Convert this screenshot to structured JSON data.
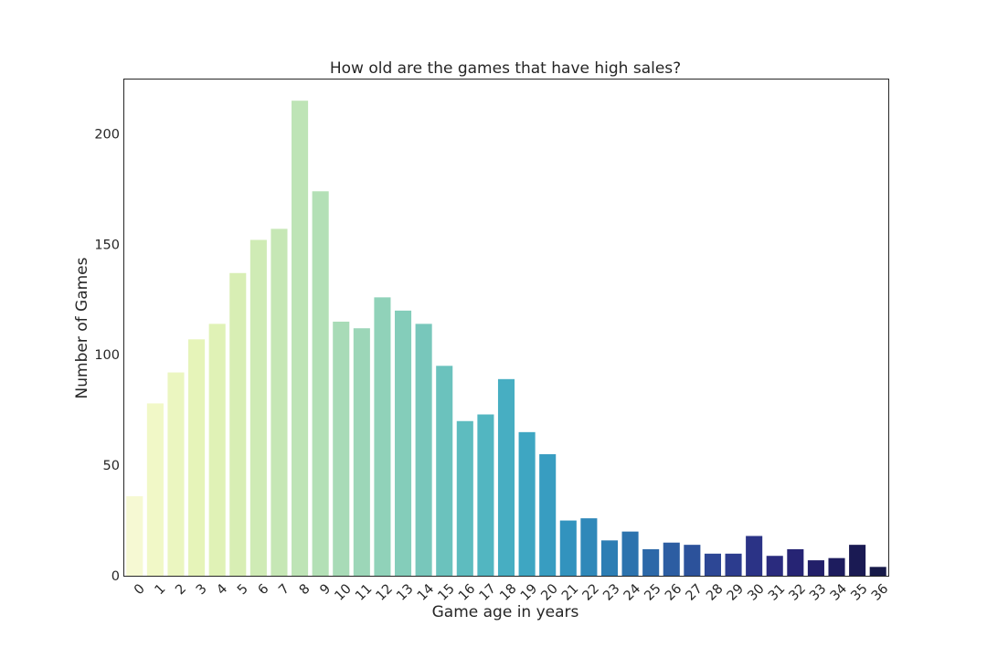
{
  "chart_data": {
    "type": "bar",
    "title": "How old are the games that have high sales?",
    "xlabel": "Game age in years",
    "ylabel": "Number of Games",
    "categories": [
      "0",
      "1",
      "2",
      "3",
      "4",
      "5",
      "6",
      "7",
      "8",
      "9",
      "10",
      "11",
      "12",
      "13",
      "14",
      "15",
      "16",
      "17",
      "18",
      "19",
      "20",
      "21",
      "22",
      "23",
      "24",
      "25",
      "26",
      "27",
      "28",
      "29",
      "30",
      "31",
      "32",
      "33",
      "34",
      "35",
      "36"
    ],
    "values": [
      36,
      78,
      92,
      107,
      114,
      137,
      152,
      157,
      215,
      174,
      115,
      112,
      126,
      120,
      114,
      95,
      70,
      73,
      89,
      65,
      55,
      25,
      26,
      16,
      20,
      12,
      15,
      14,
      10,
      10,
      18,
      9,
      12,
      7,
      8,
      14,
      4
    ],
    "ylim": [
      0,
      225
    ],
    "yticks": [
      0,
      50,
      100,
      150,
      200
    ],
    "grid": false,
    "palette": "YlGnBu",
    "colors": [
      "#f6f9d3",
      "#f1f8c7",
      "#ebf6c0",
      "#e6f4b9",
      "#e0f2b6",
      "#d8eeb4",
      "#cfebb5",
      "#c6e7b5",
      "#bee4b6",
      "#b3e0b6",
      "#a8dbb7",
      "#9cd6b8",
      "#90d2b9",
      "#84cdba",
      "#78c7bb",
      "#6bc2bd",
      "#5ebcbf",
      "#52b6c1",
      "#47aec2",
      "#3ea6c2",
      "#389dc1",
      "#3293be",
      "#2f88b9",
      "#2d7eb4",
      "#2c73ae",
      "#2c68a8",
      "#2c5da2",
      "#2c529b",
      "#2d4795",
      "#2c3c8e",
      "#2b3386",
      "#2a2b7e",
      "#262474",
      "#221f69",
      "#1d1c5e",
      "#1a1a53",
      "#171a49"
    ],
    "frame_color": "#262626"
  }
}
